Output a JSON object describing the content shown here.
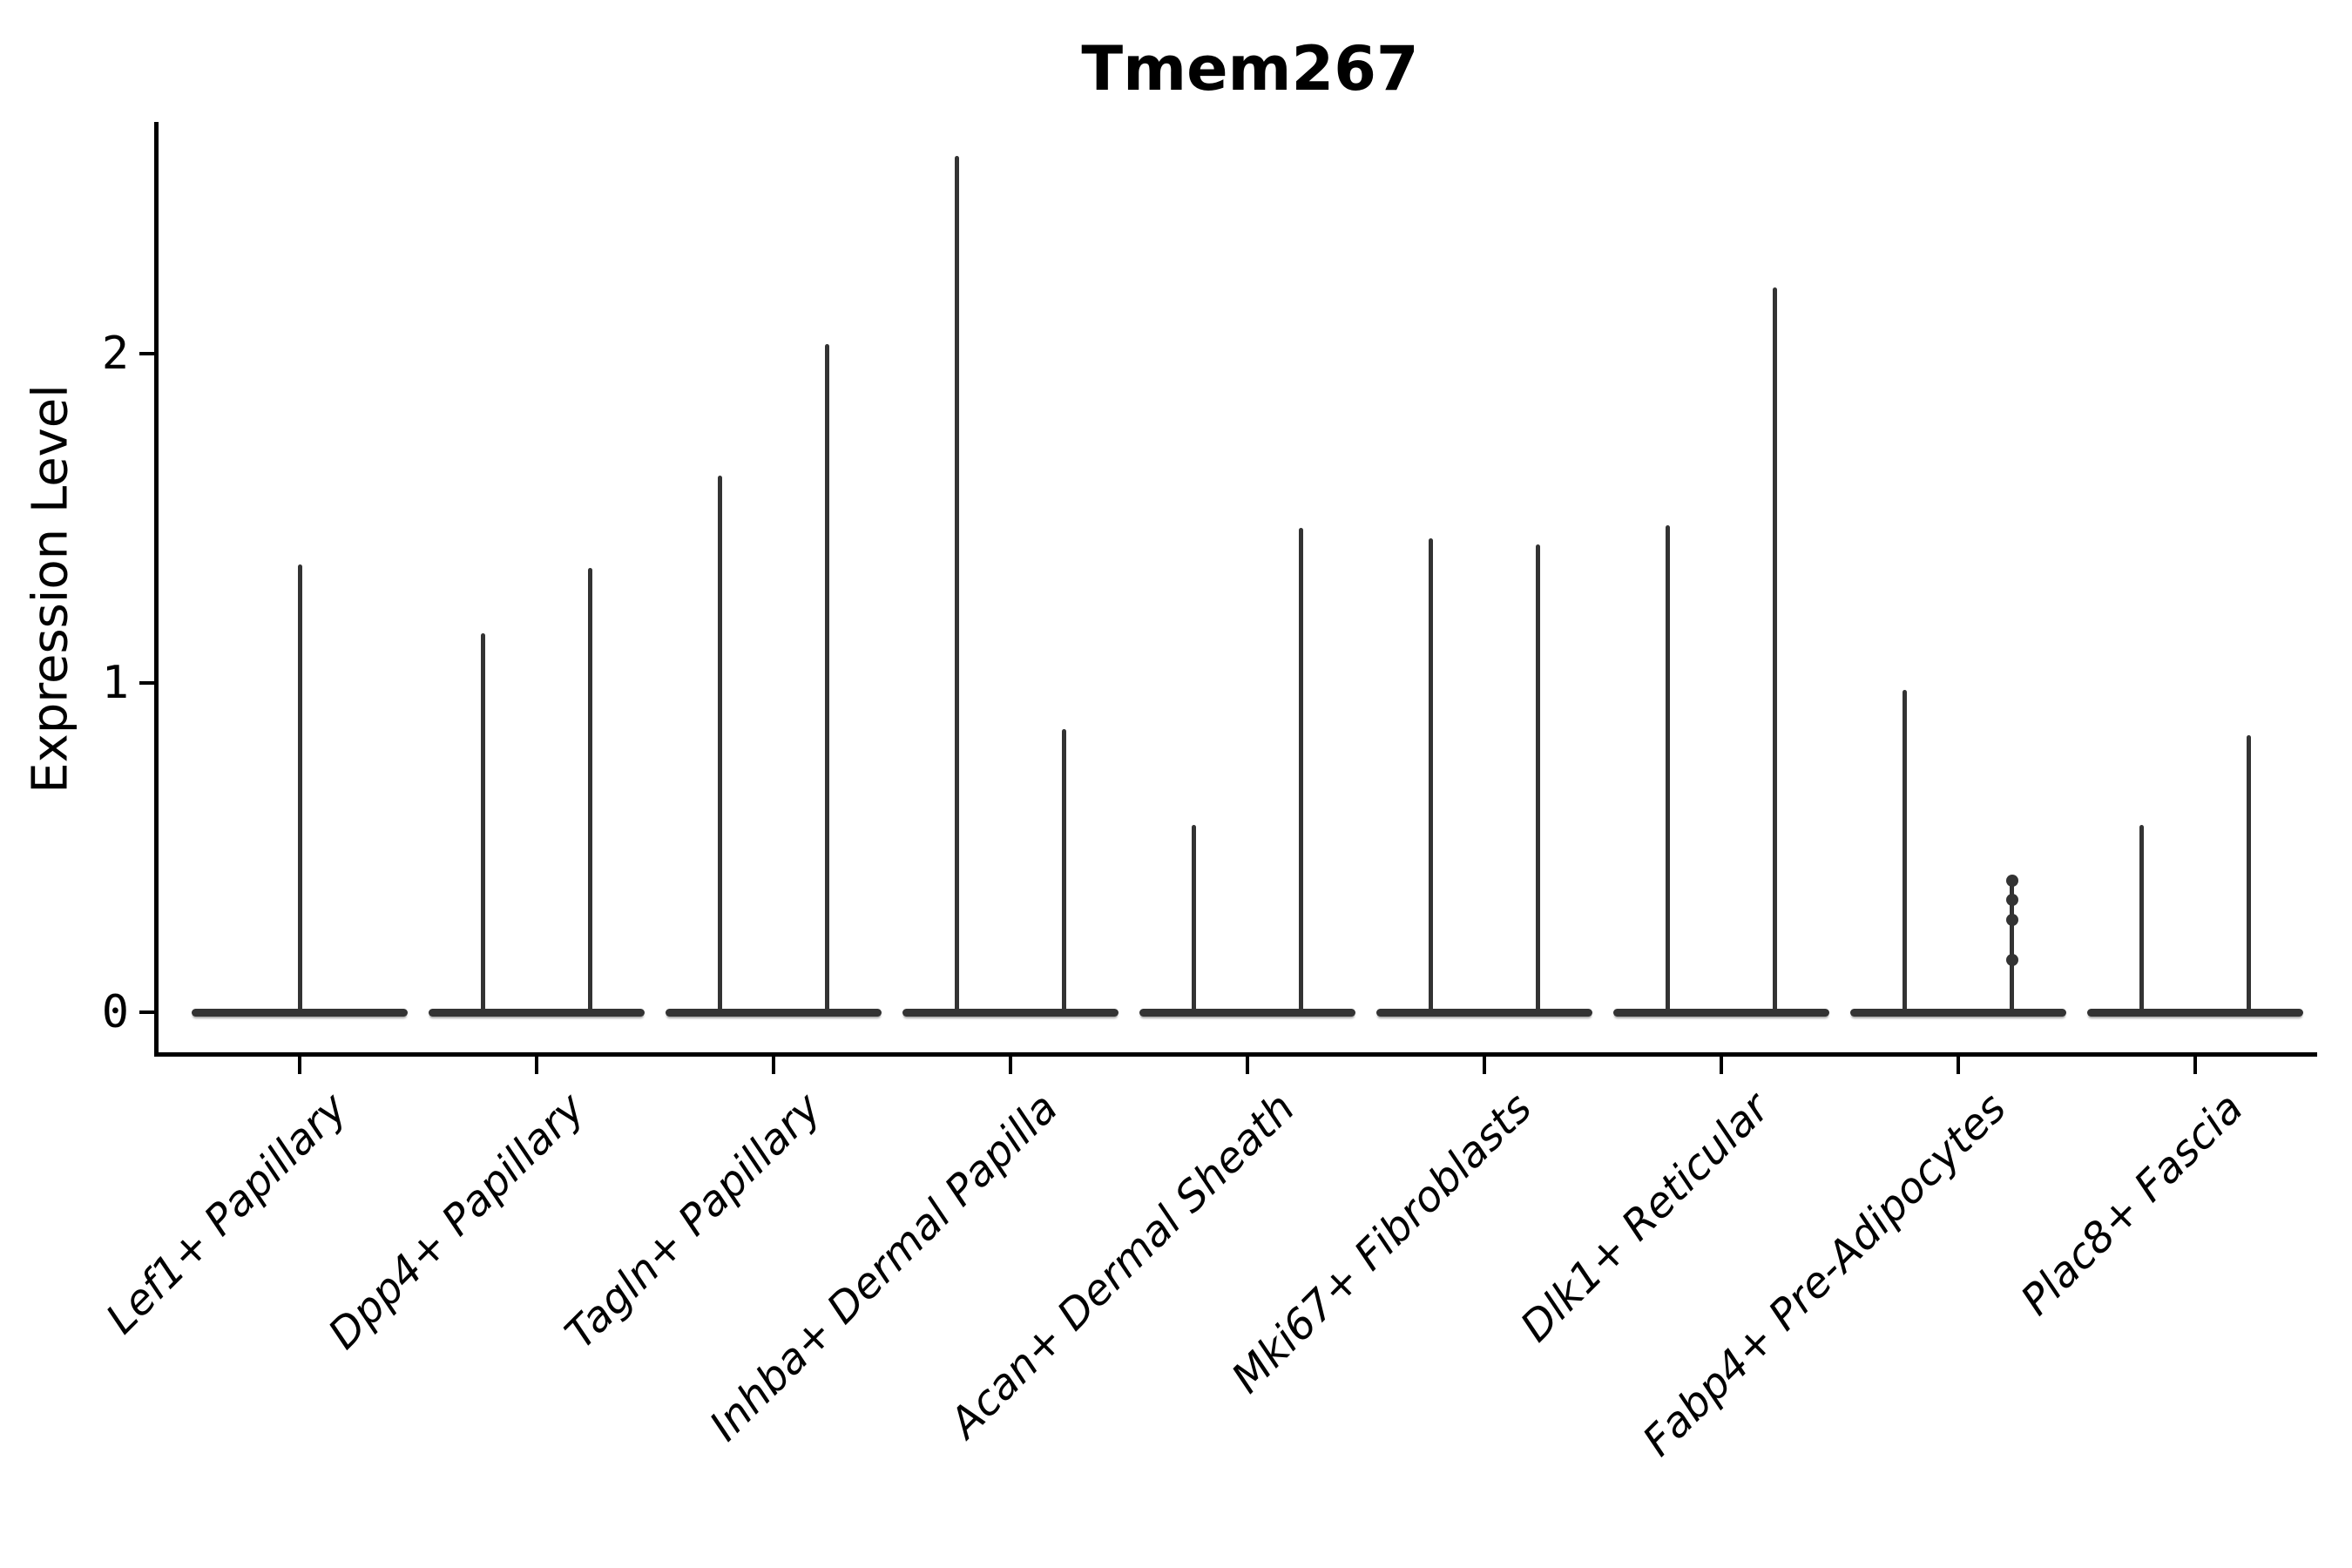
{
  "chart_data": {
    "type": "violin",
    "title": "Tmem267",
    "xlabel": "",
    "ylabel": "Expression Level",
    "yticks": [
      0,
      1,
      2
    ],
    "ylim": [
      -0.13,
      2.7
    ],
    "grid": false,
    "legend": null,
    "x_tick_label_style": "italic, rotated 45 degrees",
    "shape_note": "sparse expression: each violin is a flat pancake at 0 with a thin spike up to its maximum",
    "colors": {
      "violin": "#333333",
      "axis": "#000000",
      "text": "#000000"
    },
    "categories": [
      "Lef1+ Papillary",
      "Dpp4+ Papillary",
      "Tagln+ Papillary",
      "Inhba+ Dermal Papilla",
      "Acan+ Dermal Sheath",
      "Mki67+ Fibroblasts",
      "Dlk1+ Reticular",
      "Fabp4+ Pre-Adipocytes",
      "Plac8+ Fascia"
    ],
    "violins": [
      {
        "category": "Lef1+ Papillary",
        "maxima": [
          1.36
        ]
      },
      {
        "category": "Dpp4+ Papillary",
        "maxima": [
          1.15,
          1.35
        ]
      },
      {
        "category": "Tagln+ Papillary",
        "maxima": [
          1.63,
          2.03
        ]
      },
      {
        "category": "Inhba+ Dermal Papilla",
        "maxima": [
          2.6,
          0.86
        ]
      },
      {
        "category": "Acan+ Dermal Sheath",
        "maxima": [
          0.57,
          1.47
        ]
      },
      {
        "category": "Mki67+ Fibroblasts",
        "maxima": [
          1.44,
          1.42
        ]
      },
      {
        "category": "Dlk1+ Reticular",
        "maxima": [
          1.48,
          2.2
        ]
      },
      {
        "category": "Fabp4+ Pre-Adipocytes",
        "maxima": [
          0.98,
          0.41
        ],
        "jitter_points": {
          "violin_index": 1,
          "values": [
            0.4,
            0.34,
            0.28,
            0.16
          ]
        }
      },
      {
        "category": "Plac8+ Fascia",
        "maxima": [
          0.57,
          0.84
        ]
      }
    ]
  }
}
